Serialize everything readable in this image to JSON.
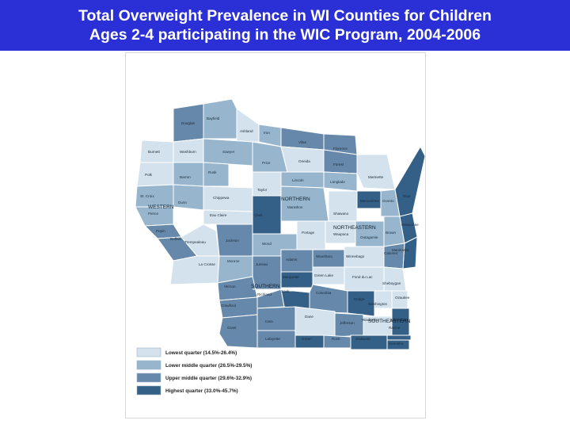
{
  "title": {
    "line1": "Total Overweight Prevalence in WI Counties for Children",
    "line2": "Ages 2-4 participating in the WIC Program, 2004-2006"
  },
  "colors": {
    "title_bar": "#2b2fd6",
    "title_text": "#ffffff",
    "lowest": "#d3e2ec",
    "lower_middle": "#97b6cd",
    "upper_middle": "#6688aa",
    "highest": "#345f86",
    "border": "#ffffff"
  },
  "legend": [
    {
      "label": "Lowest quarter (14.5%-26.4%)",
      "class": "lowest"
    },
    {
      "label": "Lower middle quarter (26.5%-29.5%)",
      "class": "lower_middle"
    },
    {
      "label": "Upper middle quarter (29.6%-32.9%)",
      "class": "upper_middle"
    },
    {
      "label": "Highest quarter (33.0%-45.7%)",
      "class": "highest"
    }
  ],
  "regions": [
    "WESTERN",
    "NORTHERN",
    "NORTHEASTERN",
    "SOUTHERN",
    "SOUTHEASTERN"
  ],
  "counties": [
    {
      "name": "Douglas",
      "class": "upper_middle"
    },
    {
      "name": "Bayfield",
      "class": "lower_middle"
    },
    {
      "name": "Ashland",
      "class": "lowest"
    },
    {
      "name": "Iron",
      "class": "lower_middle"
    },
    {
      "name": "Vilas",
      "class": "upper_middle"
    },
    {
      "name": "Florence",
      "class": "upper_middle"
    },
    {
      "name": "Burnett",
      "class": "lowest"
    },
    {
      "name": "Washburn",
      "class": "lowest"
    },
    {
      "name": "Sawyer",
      "class": "lower_middle"
    },
    {
      "name": "Price",
      "class": "lower_middle"
    },
    {
      "name": "Oneida",
      "class": "lowest"
    },
    {
      "name": "Forest",
      "class": "upper_middle"
    },
    {
      "name": "Marinette",
      "class": "lowest"
    },
    {
      "name": "Polk",
      "class": "lowest"
    },
    {
      "name": "Barron",
      "class": "lower_middle"
    },
    {
      "name": "Rusk",
      "class": "lower_middle"
    },
    {
      "name": "Lincoln",
      "class": "lower_middle"
    },
    {
      "name": "Langlade",
      "class": "lower_middle"
    },
    {
      "name": "Taylor",
      "class": "lowest"
    },
    {
      "name": "Chippewa",
      "class": "lowest"
    },
    {
      "name": "St. Croix",
      "class": "lower_middle"
    },
    {
      "name": "Dunn",
      "class": "lower_middle"
    },
    {
      "name": "Pierce",
      "class": "lower_middle"
    },
    {
      "name": "Eau Claire",
      "class": "lowest"
    },
    {
      "name": "Clark",
      "class": "highest"
    },
    {
      "name": "Marathon",
      "class": "lower_middle"
    },
    {
      "name": "Menominee",
      "class": "highest"
    },
    {
      "name": "Oconto",
      "class": "lower_middle"
    },
    {
      "name": "Shawano",
      "class": "lowest"
    },
    {
      "name": "Pepin",
      "class": "upper_middle"
    },
    {
      "name": "Buffalo",
      "class": "upper_middle"
    },
    {
      "name": "Trempealeau",
      "class": "lowest"
    },
    {
      "name": "Jackson",
      "class": "upper_middle"
    },
    {
      "name": "Wood",
      "class": "lower_middle"
    },
    {
      "name": "Portage",
      "class": "lowest"
    },
    {
      "name": "Waupaca",
      "class": "lowest"
    },
    {
      "name": "Outagamie",
      "class": "lower_middle"
    },
    {
      "name": "Brown",
      "class": "lower_middle"
    },
    {
      "name": "Kewaunee",
      "class": "highest"
    },
    {
      "name": "Door",
      "class": "highest"
    },
    {
      "name": "Manitowoc",
      "class": "highest"
    },
    {
      "name": "Calumet",
      "class": "upper_middle"
    },
    {
      "name": "Winnebago",
      "class": "lowest"
    },
    {
      "name": "La Crosse",
      "class": "lowest"
    },
    {
      "name": "Monroe",
      "class": "lower_middle"
    },
    {
      "name": "Juneau",
      "class": "upper_middle"
    },
    {
      "name": "Adams",
      "class": "upper_middle"
    },
    {
      "name": "Waushara",
      "class": "upper_middle"
    },
    {
      "name": "Marquette",
      "class": "highest"
    },
    {
      "name": "Green Lake",
      "class": "lowest"
    },
    {
      "name": "Fond du Lac",
      "class": "lowest"
    },
    {
      "name": "Sheboygan",
      "class": "lowest"
    },
    {
      "name": "Vernon",
      "class": "upper_middle"
    },
    {
      "name": "Richland",
      "class": "upper_middle"
    },
    {
      "name": "Sauk",
      "class": "highest"
    },
    {
      "name": "Columbia",
      "class": "upper_middle"
    },
    {
      "name": "Dodge",
      "class": "highest"
    },
    {
      "name": "Washington",
      "class": "lowest"
    },
    {
      "name": "Ozaukee",
      "class": "lowest"
    },
    {
      "name": "Crawford",
      "class": "upper_middle"
    },
    {
      "name": "Grant",
      "class": "upper_middle"
    },
    {
      "name": "Iowa",
      "class": "upper_middle"
    },
    {
      "name": "Dane",
      "class": "lowest"
    },
    {
      "name": "Jefferson",
      "class": "upper_middle"
    },
    {
      "name": "Waukesha",
      "class": "lowest"
    },
    {
      "name": "Milwaukee",
      "class": "highest"
    },
    {
      "name": "Lafayette",
      "class": "upper_middle"
    },
    {
      "name": "Green",
      "class": "highest"
    },
    {
      "name": "Rock",
      "class": "upper_middle"
    },
    {
      "name": "Walworth",
      "class": "highest"
    },
    {
      "name": "Racine",
      "class": "highest"
    },
    {
      "name": "Kenosha",
      "class": "highest"
    }
  ]
}
